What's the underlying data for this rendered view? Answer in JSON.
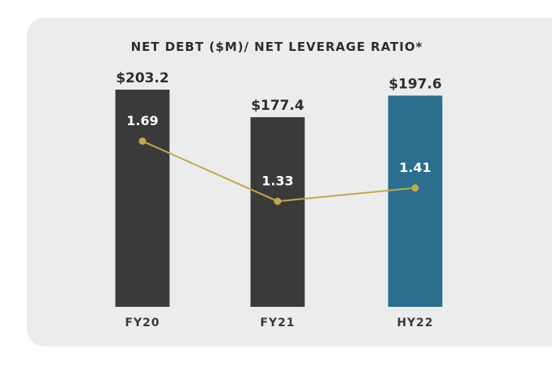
{
  "chart_data": {
    "type": "bar+line",
    "title": "NET DEBT ($M)/ NET LEVERAGE RATIO*",
    "categories": [
      "FY20",
      "FY21",
      "HY22"
    ],
    "series": [
      {
        "name": "Net Debt ($M)",
        "type": "bar",
        "values": [
          203.2,
          177.4,
          197.6
        ],
        "labels": [
          "$203.2",
          "$177.4",
          "$197.6"
        ],
        "colors": [
          "#3a3a3a",
          "#3a3a3a",
          "#2b6e8f"
        ]
      },
      {
        "name": "Net Leverage Ratio",
        "type": "line",
        "values": [
          1.69,
          1.33,
          1.41
        ],
        "labels": [
          "1.69",
          "1.33",
          "1.41"
        ],
        "color": "#bfa94a"
      }
    ],
    "bar_ylim": [
      0,
      203.2
    ],
    "line_ylim": [
      0,
      3.0
    ],
    "grid": false,
    "xlabel": "",
    "ylabel": ""
  }
}
